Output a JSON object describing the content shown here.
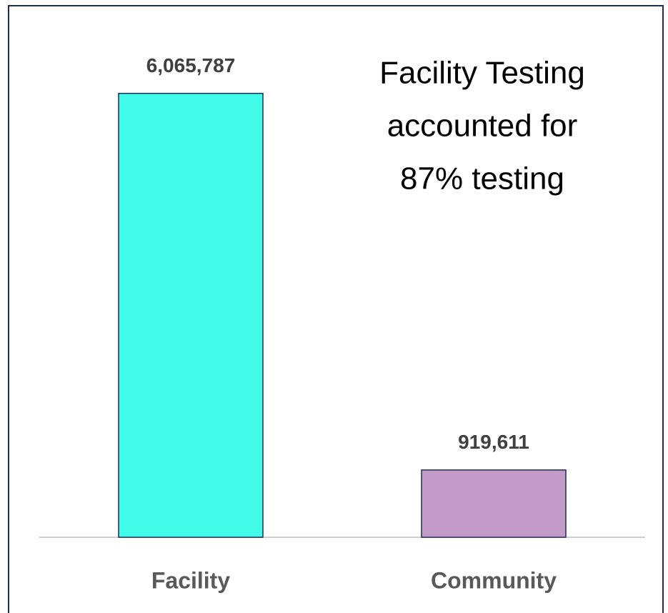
{
  "chart_data": {
    "type": "bar",
    "categories": [
      "Facility",
      "Community"
    ],
    "values": [
      6065787,
      919611
    ],
    "value_labels": [
      "6,065,787",
      "919,611"
    ],
    "colors": [
      "#3ffbe8",
      "#c39bc8"
    ],
    "annotation": [
      "Facility Testing",
      "accounted for",
      "87% testing"
    ],
    "ylim": [
      0,
      7000000
    ]
  }
}
